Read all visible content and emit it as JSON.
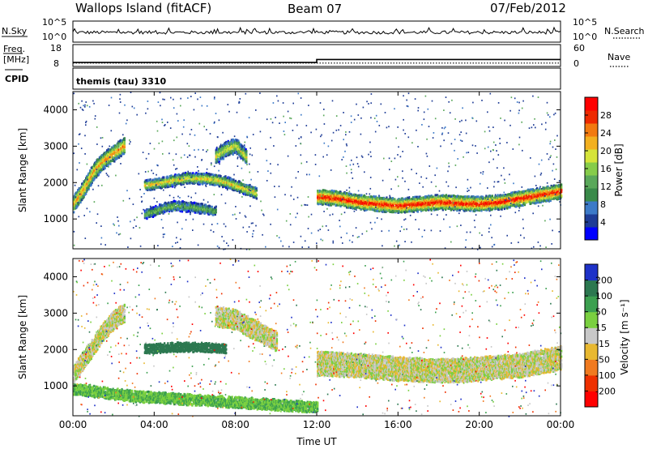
{
  "header": {
    "station": "Wallops Island (fitACF)",
    "beam": "Beam 07",
    "date": "07/Feb/2012"
  },
  "status_panels": {
    "nsky_label": "N.Sky",
    "nsearch_label": "N.Search",
    "freq_label_line1": "Freq.",
    "freq_label_line2": "[MHz]",
    "nave_label": "Nave",
    "cpid_label": "CPID",
    "noise_left_ticks": [
      "10^5",
      "10^0"
    ],
    "noise_right_ticks": [
      "10^5",
      "10^0"
    ],
    "freq_left_ticks": [
      "18",
      "8"
    ],
    "nave_right_ticks": [
      "60",
      "0"
    ],
    "cpid_text": "themis (tau) 3310",
    "freq_series": {
      "hours": [
        0,
        12,
        12,
        24
      ],
      "mhz": [
        9.3,
        9.3,
        11.0,
        11.0
      ]
    },
    "nave_series": {
      "hours": [
        0,
        24
      ],
      "count": [
        6,
        6
      ]
    }
  },
  "chart_data": [
    {
      "type": "heatmap",
      "name": "Power",
      "ylabel": "Slant Range [km]",
      "xlabel": "Time UT",
      "xlim": [
        0,
        24
      ],
      "ylim": [
        180,
        4500
      ],
      "x_ticks": [
        "00:00",
        "04:00",
        "08:00",
        "12:00",
        "16:00",
        "20:00",
        "00:00"
      ],
      "y_ticks": [
        "1000",
        "2000",
        "3000",
        "4000"
      ],
      "y_tick_values": [
        1000,
        2000,
        3000,
        4000
      ],
      "colorbar": {
        "label": "Power [dB]",
        "ticks": [
          "4",
          "8",
          "12",
          "16",
          "20",
          "24",
          "28"
        ],
        "range": [
          0,
          32
        ],
        "colors": [
          "#0000ff",
          "#1e3c96",
          "#3c7ac8",
          "#3a8a4a",
          "#5aa85a",
          "#86cc4a",
          "#d6e43a",
          "#f2b020",
          "#f27a10",
          "#ee2a00",
          "#ff0000"
        ]
      },
      "bands": [
        {
          "hours": [
            12.0,
            13,
            14,
            15,
            16,
            17,
            18,
            19,
            20,
            21,
            22,
            23,
            24
          ],
          "range_km": [
            1600,
            1550,
            1450,
            1400,
            1350,
            1400,
            1450,
            1420,
            1400,
            1450,
            1550,
            1650,
            1750
          ],
          "width_km": 350,
          "power_db": 28
        },
        {
          "hours": [
            0.0,
            0.5,
            1.0,
            1.5,
            2.0,
            2.5
          ],
          "range_km": [
            1400,
            1800,
            2300,
            2600,
            2800,
            3000
          ],
          "width_km": 400,
          "power_db": 22
        },
        {
          "hours": [
            3.5,
            4.5,
            5.5,
            6.5,
            7.5,
            8.5,
            9.0
          ],
          "range_km": [
            1900,
            2000,
            2100,
            2100,
            2000,
            1800,
            1700
          ],
          "width_km": 250,
          "power_db": 20
        },
        {
          "hours": [
            7.0,
            7.5,
            8.0,
            8.5
          ],
          "range_km": [
            2700,
            2900,
            3000,
            2700
          ],
          "width_km": 350,
          "power_db": 18
        },
        {
          "hours": [
            3.5,
            4.0,
            4.5,
            5.0,
            6.0,
            7.0
          ],
          "range_km": [
            1100,
            1200,
            1300,
            1350,
            1300,
            1200
          ],
          "width_km": 220,
          "power_db": 14
        }
      ]
    },
    {
      "type": "heatmap",
      "name": "Velocity",
      "ylabel": "Slant Range [km]",
      "xlabel": "Time UT",
      "xlim": [
        0,
        24
      ],
      "ylim": [
        180,
        4500
      ],
      "x_ticks": [
        "00:00",
        "04:00",
        "08:00",
        "12:00",
        "16:00",
        "20:00",
        "00:00"
      ],
      "y_ticks": [
        "1000",
        "2000",
        "3000",
        "4000"
      ],
      "y_tick_values": [
        1000,
        2000,
        3000,
        4000
      ],
      "colorbar": {
        "label": "Velocity [m s⁻¹]",
        "ticks": [
          "200",
          "100",
          "50",
          "15",
          "-15",
          "-50",
          "-100",
          "-200"
        ],
        "colors": [
          "#1e32c8",
          "#2c7850",
          "#3ca050",
          "#7ad040",
          "#c8c8c8",
          "#e8b830",
          "#f07a20",
          "#ee3000",
          "#ff0000"
        ]
      },
      "bands": [
        {
          "hours": [
            12.0,
            14,
            16,
            18,
            20,
            22,
            24
          ],
          "range_km": [
            1600,
            1550,
            1450,
            1400,
            1450,
            1550,
            1750
          ],
          "width_km": 600,
          "velocity": 0
        },
        {
          "hours": [
            0.0,
            0.5,
            1.0,
            1.5,
            2.0,
            2.5
          ],
          "range_km": [
            1300,
            1700,
            2100,
            2500,
            2800,
            3000
          ],
          "width_km": 450,
          "velocity": 0
        },
        {
          "hours": [
            3.5,
            5.0,
            6.5,
            7.5
          ],
          "range_km": [
            2000,
            2050,
            2050,
            2000
          ],
          "width_km": 200,
          "velocity": 120
        },
        {
          "hours": [
            7.0,
            8.0,
            9.0,
            10.0
          ],
          "range_km": [
            2900,
            2800,
            2500,
            2200
          ],
          "width_km": 500,
          "velocity": 0
        },
        {
          "hours": [
            0.0,
            3.0,
            6.0,
            9.0,
            12.0
          ],
          "range_km": [
            900,
            700,
            600,
            500,
            400
          ],
          "width_km": 250,
          "velocity": 30
        }
      ]
    }
  ]
}
